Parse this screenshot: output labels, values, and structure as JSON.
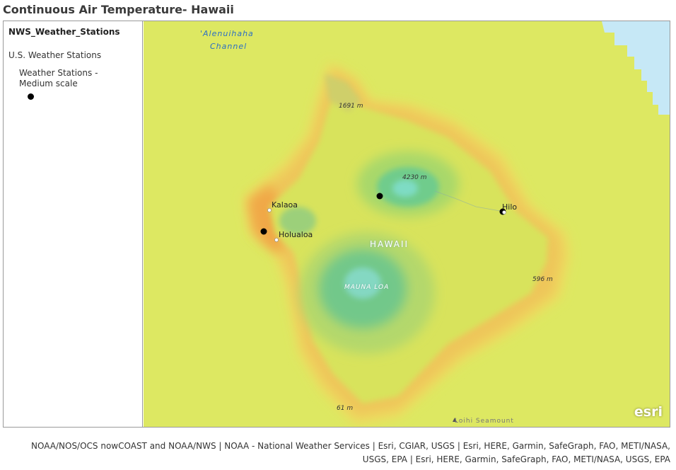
{
  "title": "Continuous Air Temperature- Hawaii",
  "legend": {
    "layer_name": "NWS_Weather_Stations",
    "group_name": "U.S. Weather Stations",
    "item_label": "Weather Stations - Medium scale"
  },
  "map": {
    "labels": {
      "channel_line1": "'Alenuihaha",
      "channel_line2": "Channel",
      "kalaoa": "Kalaoa",
      "holualoa": "Holualoa",
      "hilo": "Hilo",
      "hawaii": "HAWAII",
      "mauna_loa": "MAUNA LOA",
      "elev_1691": "1691 m",
      "elev_4230": "4230 m",
      "elev_596": "596 m",
      "elev_61": "61 m",
      "loihi": "Loihi Seamount"
    },
    "logo": "esri",
    "colors": {
      "ocean": "#c6e8f6",
      "coast": "#e6ec64",
      "warm": "#f1b04c",
      "cool": "#5ec89a",
      "station": "#000000"
    }
  },
  "attribution_line1": "NOAA/NOS/OCS nowCOAST and NOAA/NWS | NOAA - National Weather Services | Esri, CGIAR, USGS | Esri, HERE, Garmin, SafeGraph, FAO, METI/NASA,",
  "attribution_line2": "USGS, EPA | Esri, HERE, Garmin, SafeGraph, FAO, METI/NASA, USGS, EPA"
}
